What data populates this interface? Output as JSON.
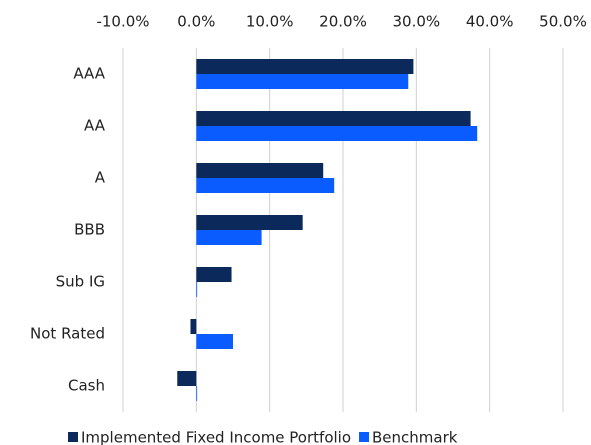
{
  "chart_data": {
    "type": "bar",
    "orientation": "horizontal",
    "categories": [
      "AAA",
      "AA",
      "A",
      "BBB",
      "Sub IG",
      "Not Rated",
      "Cash"
    ],
    "series": [
      {
        "name": "Implemented Fixed Income Portfolio",
        "color": "#0b2a5b",
        "values": [
          29.6,
          37.4,
          17.3,
          14.5,
          4.8,
          -0.8,
          -2.6
        ]
      },
      {
        "name": "Benchmark",
        "color": "#0a5cff",
        "values": [
          28.9,
          38.3,
          18.8,
          8.9,
          0,
          5.0,
          0
        ]
      }
    ],
    "xlim": [
      -10,
      50
    ],
    "xticks": [
      {
        "value": -10,
        "label": "-10.0%"
      },
      {
        "value": 0,
        "label": "0.0%"
      },
      {
        "value": 10,
        "label": "10.0%"
      },
      {
        "value": 20,
        "label": "20.0%"
      },
      {
        "value": 30,
        "label": "30.0%"
      },
      {
        "value": 40,
        "label": "40.0%"
      },
      {
        "value": 50,
        "label": "50.0%"
      }
    ],
    "grid": true,
    "legend": "bottom"
  }
}
